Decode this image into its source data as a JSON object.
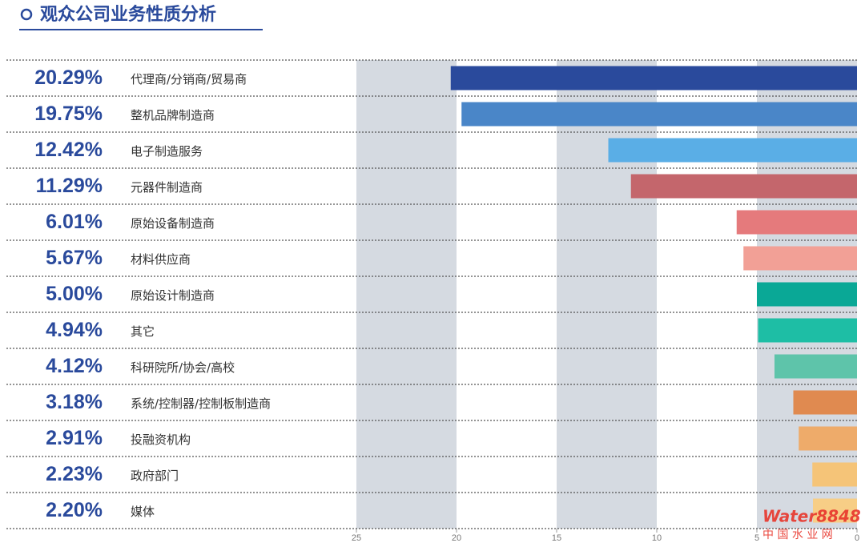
{
  "chart_data": {
    "type": "bar",
    "orientation": "horizontal",
    "title": "观众公司业务性质分析",
    "categories": [
      "代理商/分销商/贸易商",
      "整机品牌制造商",
      "电子制造服务",
      "元器件制造商",
      "原始设备制造商",
      "材料供应商",
      "原始设计制造商",
      "其它",
      "科研院所/协会/高校",
      "系统/控制器/控制板制造商",
      "投融资机构",
      "政府部门",
      "媒体"
    ],
    "values": [
      20.29,
      19.75,
      12.42,
      11.29,
      6.01,
      5.67,
      5.0,
      4.94,
      4.12,
      3.18,
      2.91,
      2.23,
      2.2
    ],
    "value_labels": [
      "20.29%",
      "19.75%",
      "12.42%",
      "11.29%",
      "6.01%",
      "5.67%",
      "5.00%",
      "4.94%",
      "4.12%",
      "3.18%",
      "2.91%",
      "2.23%",
      "2.20%"
    ],
    "colors": [
      "#2a4a9c",
      "#4a86c8",
      "#5aaee6",
      "#c4666c",
      "#e57a7c",
      "#f2a096",
      "#0aa896",
      "#1ebea5",
      "#5ec4aa",
      "#e08a50",
      "#eeab6a",
      "#f5c478",
      "#f7ce86"
    ],
    "xlim": [
      25,
      0
    ],
    "xticks": [
      25,
      20,
      15,
      10,
      5,
      0
    ],
    "watermark": {
      "brand": "Water8848",
      "name": "中 国 水 业 网"
    }
  }
}
